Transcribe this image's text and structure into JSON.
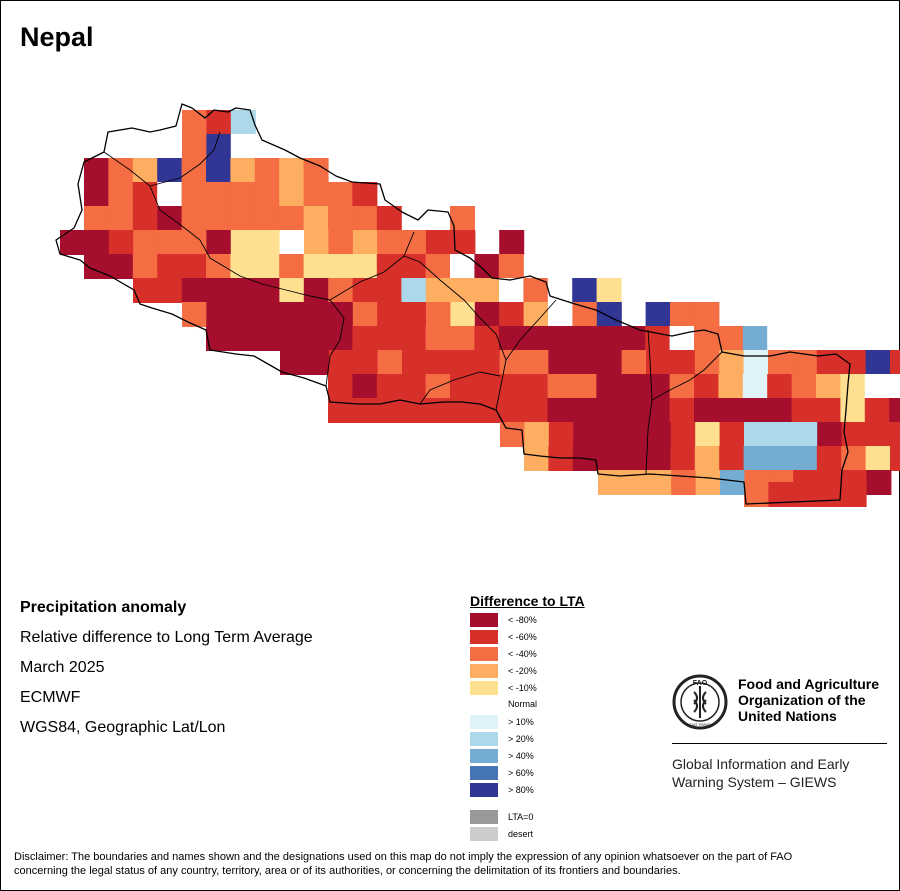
{
  "title": "Nepal",
  "info": {
    "heading": "Precipitation anomaly",
    "subtitle": "Relative difference to Long Term Average",
    "period": "March 2025",
    "source": "ECMWF",
    "projection": "WGS84, Geographic Lat/Lon"
  },
  "legend": {
    "title": "Difference to LTA",
    "classes": [
      {
        "key": "m80",
        "label": "< -80%",
        "color": "#a50f2d"
      },
      {
        "key": "m60",
        "label": "< -60%",
        "color": "#d7302a"
      },
      {
        "key": "m40",
        "label": "< -40%",
        "color": "#f46d43"
      },
      {
        "key": "m20",
        "label": "< -20%",
        "color": "#fdae61"
      },
      {
        "key": "m10",
        "label": "< -10%",
        "color": "#fee090"
      },
      {
        "key": "n",
        "label": "Normal",
        "color": "#ffffff"
      },
      {
        "key": "p10",
        "label": "> 10%",
        "color": "#e0f3f8"
      },
      {
        "key": "p20",
        "label": "> 20%",
        "color": "#abd9e9"
      },
      {
        "key": "p40",
        "label": "> 40%",
        "color": "#74add1"
      },
      {
        "key": "p60",
        "label": "> 60%",
        "color": "#4575b4"
      },
      {
        "key": "p80",
        "label": "> 80%",
        "color": "#313695"
      }
    ],
    "extra": [
      {
        "key": "lta0",
        "label": "LTA=0",
        "color": "#999999"
      },
      {
        "key": "desert",
        "label": "desert",
        "color": "#cccccc"
      }
    ]
  },
  "grid": [
    {
      "row": 0,
      "cells": "----------------------------------------------"
    },
    {
      "row": 1,
      "cells": "---------------------------"
    }
  ],
  "fao": {
    "name_line1": "Food and Agriculture",
    "name_line2": "Organization of the",
    "name_line3": "United Nations",
    "emblem_text": "FAO",
    "emblem_motto": "FIAT PANIS",
    "giews_line1": "Global Information and Early",
    "giews_line2": "Warning System – GIEWS"
  },
  "disclaimer_line1": "Disclaimer: The boundaries and names shown and the designations used on this map do not imply the expression of any opinion whatsoever on the part of FAO",
  "disclaimer_line2": "concerning the legal status of any country, territory, area or of its authorities, or concerning the delimitation of its frontiers and boundaries."
}
